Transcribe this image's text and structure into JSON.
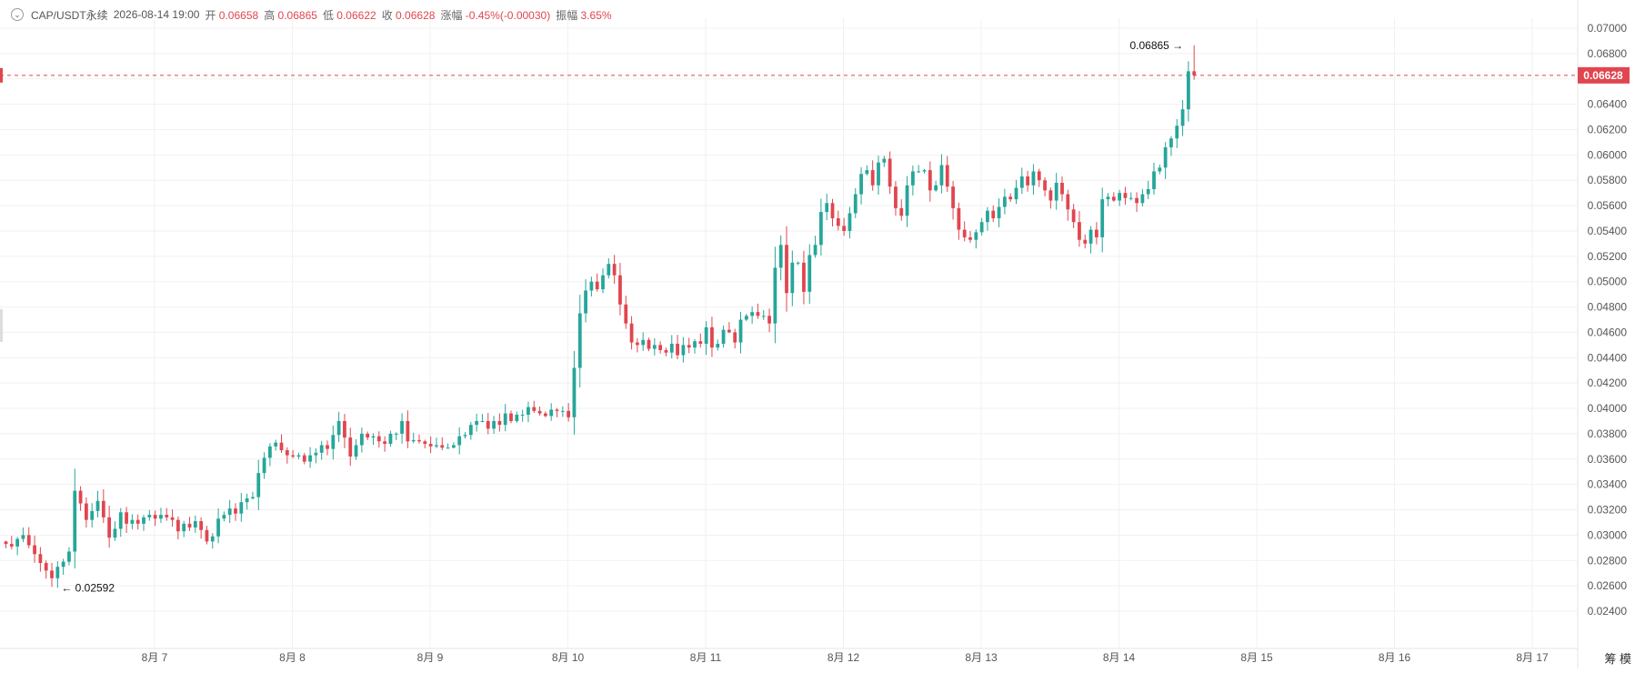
{
  "header": {
    "symbol": "CAP/USDT永续",
    "datetime": "2026-08-14 19:00",
    "open_label": "开",
    "open": "0.06658",
    "high_label": "高",
    "high": "0.06865",
    "low_label": "低",
    "low": "0.06622",
    "close_label": "收",
    "close": "0.06628",
    "change_label": "涨幅",
    "change": "-0.45%(-0.00030)",
    "amplitude_label": "振幅",
    "amplitude": "3.65%"
  },
  "corner_text": "筹 模",
  "colors": {
    "up": "#26a69a",
    "down": "#e0464f",
    "grid": "#f1f1f1",
    "axis_text": "#555555"
  },
  "chart_data": {
    "type": "candlestick",
    "title": "",
    "ylim": [
      0.0235,
      0.071
    ],
    "yticks": [
      0.024,
      0.026,
      0.028,
      0.03,
      0.032,
      0.034,
      0.036,
      0.038,
      0.04,
      0.042,
      0.044,
      0.046,
      0.048,
      0.05,
      0.052,
      0.054,
      0.056,
      0.058,
      0.06,
      0.062,
      0.064,
      0.066,
      0.068,
      0.07
    ],
    "ytick_labels": [
      "0.02400",
      "0.02600",
      "0.02800",
      "0.03000",
      "0.03200",
      "0.03400",
      "0.03600",
      "0.03800",
      "0.04000",
      "0.04200",
      "0.04400",
      "0.04600",
      "0.04800",
      "0.05000",
      "0.05200",
      "0.05400",
      "0.05600",
      "0.05800",
      "0.06000",
      "0.06200",
      "0.06400",
      "0.06600",
      "0.06800",
      "0.07000"
    ],
    "xticks": [
      {
        "label": "8月 7",
        "day": 7
      },
      {
        "label": "8月 8",
        "day": 8
      },
      {
        "label": "8月 9",
        "day": 9
      },
      {
        "label": "8月 10",
        "day": 10
      },
      {
        "label": "8月 11",
        "day": 11
      },
      {
        "label": "8月 12",
        "day": 12
      },
      {
        "label": "8月 13",
        "day": 13
      },
      {
        "label": "8月 14",
        "day": 14
      },
      {
        "label": "8月 15",
        "day": 15
      },
      {
        "label": "8月 16",
        "day": 16
      },
      {
        "label": "8月 17",
        "day": 17
      }
    ],
    "x_range_days": [
      5.9,
      17.2
    ],
    "start_day": 5.9,
    "interval_hours": 1,
    "current_price": 0.06628,
    "current_price_label": "0.06628",
    "max_label": "0.06865",
    "min_label": "0.02592",
    "max_bar_index": 207,
    "min_bar_index": 8,
    "closes": [
      0.0293,
      0.0291,
      0.0297,
      0.03,
      0.0292,
      0.0285,
      0.0278,
      0.0272,
      0.0266,
      0.0275,
      0.0279,
      0.0287,
      0.0335,
      0.0325,
      0.0312,
      0.0319,
      0.0327,
      0.0314,
      0.0298,
      0.0305,
      0.0318,
      0.0309,
      0.0312,
      0.0309,
      0.0314,
      0.0316,
      0.0313,
      0.0316,
      0.0314,
      0.0312,
      0.0303,
      0.0309,
      0.0306,
      0.0311,
      0.0304,
      0.0295,
      0.0299,
      0.0313,
      0.0316,
      0.0321,
      0.0317,
      0.0326,
      0.0329,
      0.033,
      0.0349,
      0.0361,
      0.037,
      0.0373,
      0.0367,
      0.0363,
      0.0362,
      0.0363,
      0.0358,
      0.0363,
      0.0365,
      0.0371,
      0.0368,
      0.0379,
      0.039,
      0.0377,
      0.0362,
      0.0371,
      0.038,
      0.0377,
      0.0378,
      0.0374,
      0.0372,
      0.038,
      0.038,
      0.039,
      0.0374,
      0.0375,
      0.0374,
      0.0372,
      0.037,
      0.0371,
      0.0369,
      0.0369,
      0.0371,
      0.0378,
      0.0379,
      0.0387,
      0.039,
      0.039,
      0.0384,
      0.039,
      0.0387,
      0.0396,
      0.039,
      0.0395,
      0.0395,
      0.0401,
      0.0398,
      0.0396,
      0.0394,
      0.0399,
      0.0398,
      0.0398,
      0.0393,
      0.0432,
      0.0475,
      0.0493,
      0.05,
      0.0494,
      0.0505,
      0.0514,
      0.0505,
      0.0482,
      0.0467,
      0.0452,
      0.045,
      0.0454,
      0.0447,
      0.045,
      0.0446,
      0.0444,
      0.0451,
      0.0442,
      0.045,
      0.0448,
      0.0453,
      0.0451,
      0.0464,
      0.0448,
      0.0451,
      0.0462,
      0.046,
      0.0452,
      0.047,
      0.0473,
      0.0476,
      0.0473,
      0.0473,
      0.0467,
      0.0511,
      0.0529,
      0.0491,
      0.0515,
      0.0515,
      0.0492,
      0.0521,
      0.0529,
      0.0555,
      0.0562,
      0.055,
      0.0544,
      0.054,
      0.0554,
      0.0569,
      0.0585,
      0.0588,
      0.0576,
      0.0594,
      0.0597,
      0.0575,
      0.0558,
      0.0552,
      0.0576,
      0.0587,
      0.0587,
      0.0588,
      0.0572,
      0.0576,
      0.0592,
      0.0575,
      0.0558,
      0.0541,
      0.0535,
      0.0533,
      0.0539,
      0.0547,
      0.0556,
      0.055,
      0.0559,
      0.0567,
      0.0565,
      0.0574,
      0.0583,
      0.0576,
      0.0587,
      0.058,
      0.0572,
      0.0564,
      0.0578,
      0.0569,
      0.0557,
      0.0547,
      0.0533,
      0.053,
      0.0541,
      0.0535,
      0.0565,
      0.0567,
      0.0564,
      0.057,
      0.0566,
      0.0566,
      0.0562,
      0.0569,
      0.0573,
      0.0587,
      0.059,
      0.0606,
      0.0613,
      0.0623,
      0.0636,
      0.0666,
      0.0663
    ]
  }
}
